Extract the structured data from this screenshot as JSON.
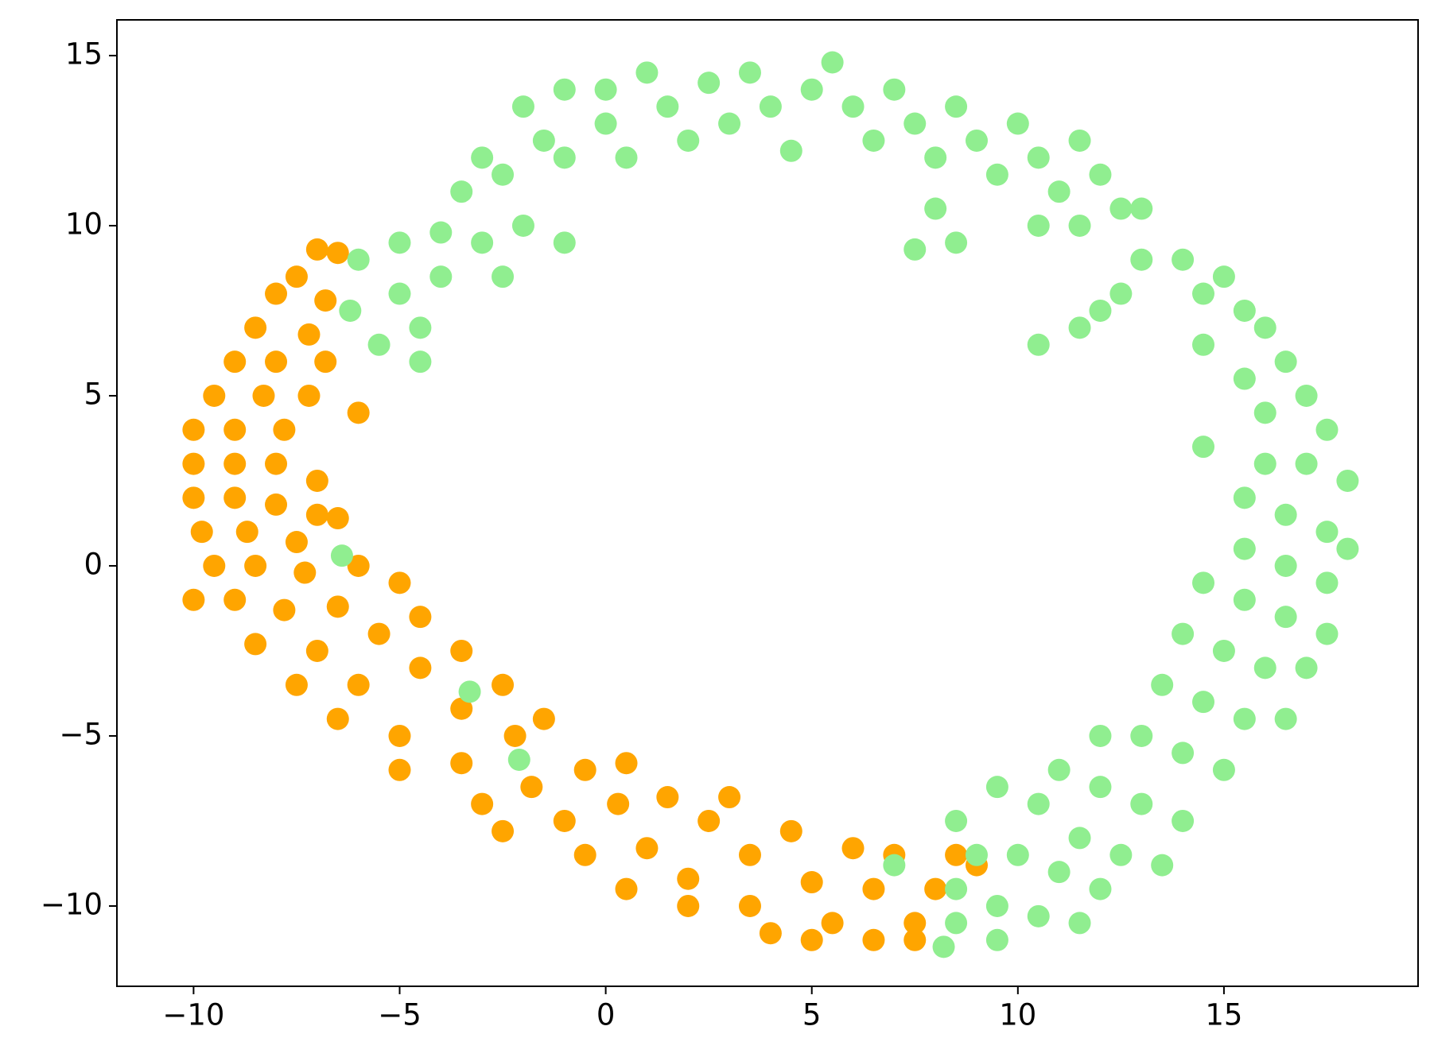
{
  "chart_data": {
    "type": "scatter",
    "xlim": [
      -11.86,
      19.71
    ],
    "ylim": [
      -12.36,
      16.05
    ],
    "xticks": [
      {
        "value": -10,
        "label": "−10"
      },
      {
        "value": -5,
        "label": "−5"
      },
      0,
      5,
      10,
      15
    ],
    "yticks": [
      {
        "value": -10,
        "label": "−10"
      },
      {
        "value": -5,
        "label": "−5"
      },
      0,
      5,
      10,
      15
    ],
    "series": [
      {
        "color": "#ffa500",
        "x": [
          -7,
          -6.5,
          -7.5,
          -8,
          -6.8,
          -8.5,
          -7.2,
          -9,
          -8,
          -6.8,
          -9.5,
          -8.3,
          -7.2,
          -6,
          -10,
          -9,
          -7.8,
          -10,
          -9,
          -8,
          -7,
          -10,
          -9,
          -8,
          -7,
          -6.5,
          -9.8,
          -8.7,
          -7.5,
          -9.5,
          -8.5,
          -7.3,
          -6,
          -10,
          -9,
          -7.8,
          -6.5,
          -5,
          -8.5,
          -7,
          -5.5,
          -4.5,
          -7.5,
          -6,
          -4.5,
          -3.5,
          -6.5,
          -5,
          -3.5,
          -2.5,
          -5,
          -3.5,
          -2.2,
          -1.5,
          -3,
          -1.8,
          -0.5,
          0.5,
          -2.5,
          -1,
          0.3,
          1.5,
          -0.5,
          1,
          2.5,
          3,
          0.5,
          2,
          3.5,
          4.5,
          2,
          3.5,
          5,
          6,
          4,
          5.5,
          6.5,
          7,
          5,
          6.5,
          7.5,
          8,
          8.5,
          9,
          7.5
        ],
        "values": [
          9.3,
          9.2,
          8.5,
          8,
          7.8,
          7,
          6.8,
          6,
          6,
          6,
          5,
          5,
          5,
          4.5,
          4,
          4,
          4,
          3,
          3,
          3,
          2.5,
          2,
          2,
          1.8,
          1.5,
          1.4,
          1,
          1,
          0.7,
          0,
          0,
          -0.2,
          0,
          -1,
          -1,
          -1.3,
          -1.2,
          -0.5,
          -2.3,
          -2.5,
          -2,
          -1.5,
          -3.5,
          -3.5,
          -3,
          -2.5,
          -4.5,
          -5,
          -4.2,
          -3.5,
          -6,
          -5.8,
          -5,
          -4.5,
          -7,
          -6.5,
          -6,
          -5.8,
          -7.8,
          -7.5,
          -7,
          -6.8,
          -8.5,
          -8.3,
          -7.5,
          -6.8,
          -9.5,
          -9.2,
          -8.5,
          -7.8,
          -10,
          -10,
          -9.3,
          -8.3,
          -10.8,
          -10.5,
          -9.5,
          -8.5,
          -11,
          -11,
          -10.5,
          -9.5,
          -8.5,
          -8.8,
          -11
        ]
      },
      {
        "color": "#90ee90",
        "x": [
          -6,
          -5,
          -6.2,
          -5,
          -5.5,
          -4.5,
          -4,
          -4,
          -3.5,
          -3,
          -2.5,
          -3,
          -2,
          -1,
          -2.5,
          -4.5,
          -2,
          -1.5,
          -1,
          0,
          0,
          -1,
          0.5,
          1,
          1.5,
          2,
          2.5,
          3,
          3.5,
          4,
          4.5,
          5,
          5.5,
          6,
          6.5,
          7,
          7.5,
          8,
          8.5,
          9,
          9.5,
          10,
          10.5,
          11,
          11.5,
          12,
          12.5,
          11.5,
          10.5,
          8,
          7.5,
          8.5,
          13,
          13,
          12.5,
          12,
          11.5,
          10.5,
          14,
          14.5,
          15,
          15.5,
          14.5,
          16,
          15.5,
          16.5,
          16,
          17,
          17.5,
          14.5,
          16,
          17,
          18,
          15.5,
          16.5,
          17.5,
          18,
          15.5,
          16.5,
          17.5,
          14.5,
          15.5,
          16.5,
          17.5,
          14,
          15,
          16,
          17,
          13.5,
          14.5,
          15.5,
          16.5,
          12,
          13,
          14,
          15,
          11,
          12,
          13,
          14,
          9.5,
          10.5,
          11.5,
          12.5,
          13.5,
          8.5,
          9,
          10,
          11,
          12,
          8.5,
          9.5,
          10.5,
          11.5,
          8.5,
          9.5,
          8.2,
          -3.3,
          -2.1,
          7,
          -6.4
        ],
        "values": [
          9,
          9.5,
          7.5,
          8,
          6.5,
          7,
          8.5,
          9.8,
          11,
          12,
          11.5,
          9.5,
          10,
          9.5,
          8.5,
          6,
          13.5,
          12.5,
          14,
          14,
          13,
          12,
          12,
          14.5,
          13.5,
          12.5,
          14.2,
          13,
          14.5,
          13.5,
          12.2,
          14,
          14.8,
          13.5,
          12.5,
          14,
          13,
          12,
          13.5,
          12.5,
          11.5,
          13,
          12,
          11,
          12.5,
          11.5,
          10.5,
          10,
          10,
          10.5,
          9.3,
          9.5,
          10.5,
          9,
          8,
          7.5,
          7,
          6.5,
          9,
          8,
          8.5,
          7.5,
          6.5,
          7,
          5.5,
          6,
          4.5,
          5,
          4,
          3.5,
          3,
          3,
          2.5,
          2,
          1.5,
          1,
          0.5,
          0.5,
          0,
          -0.5,
          -0.5,
          -1,
          -1.5,
          -2,
          -2,
          -2.5,
          -3,
          -3,
          -3.5,
          -4,
          -4.5,
          -4.5,
          -5,
          -5,
          -5.5,
          -6,
          -6,
          -6.5,
          -7,
          -7.5,
          -6.5,
          -7,
          -8,
          -8.5,
          -8.8,
          -7.5,
          -8.5,
          -8.5,
          -9,
          -9.5,
          -9.5,
          -10,
          -10.3,
          -10.5,
          -10.5,
          -11,
          -11.2,
          -3.7,
          -5.7,
          -8.8,
          0.3
        ]
      }
    ]
  }
}
